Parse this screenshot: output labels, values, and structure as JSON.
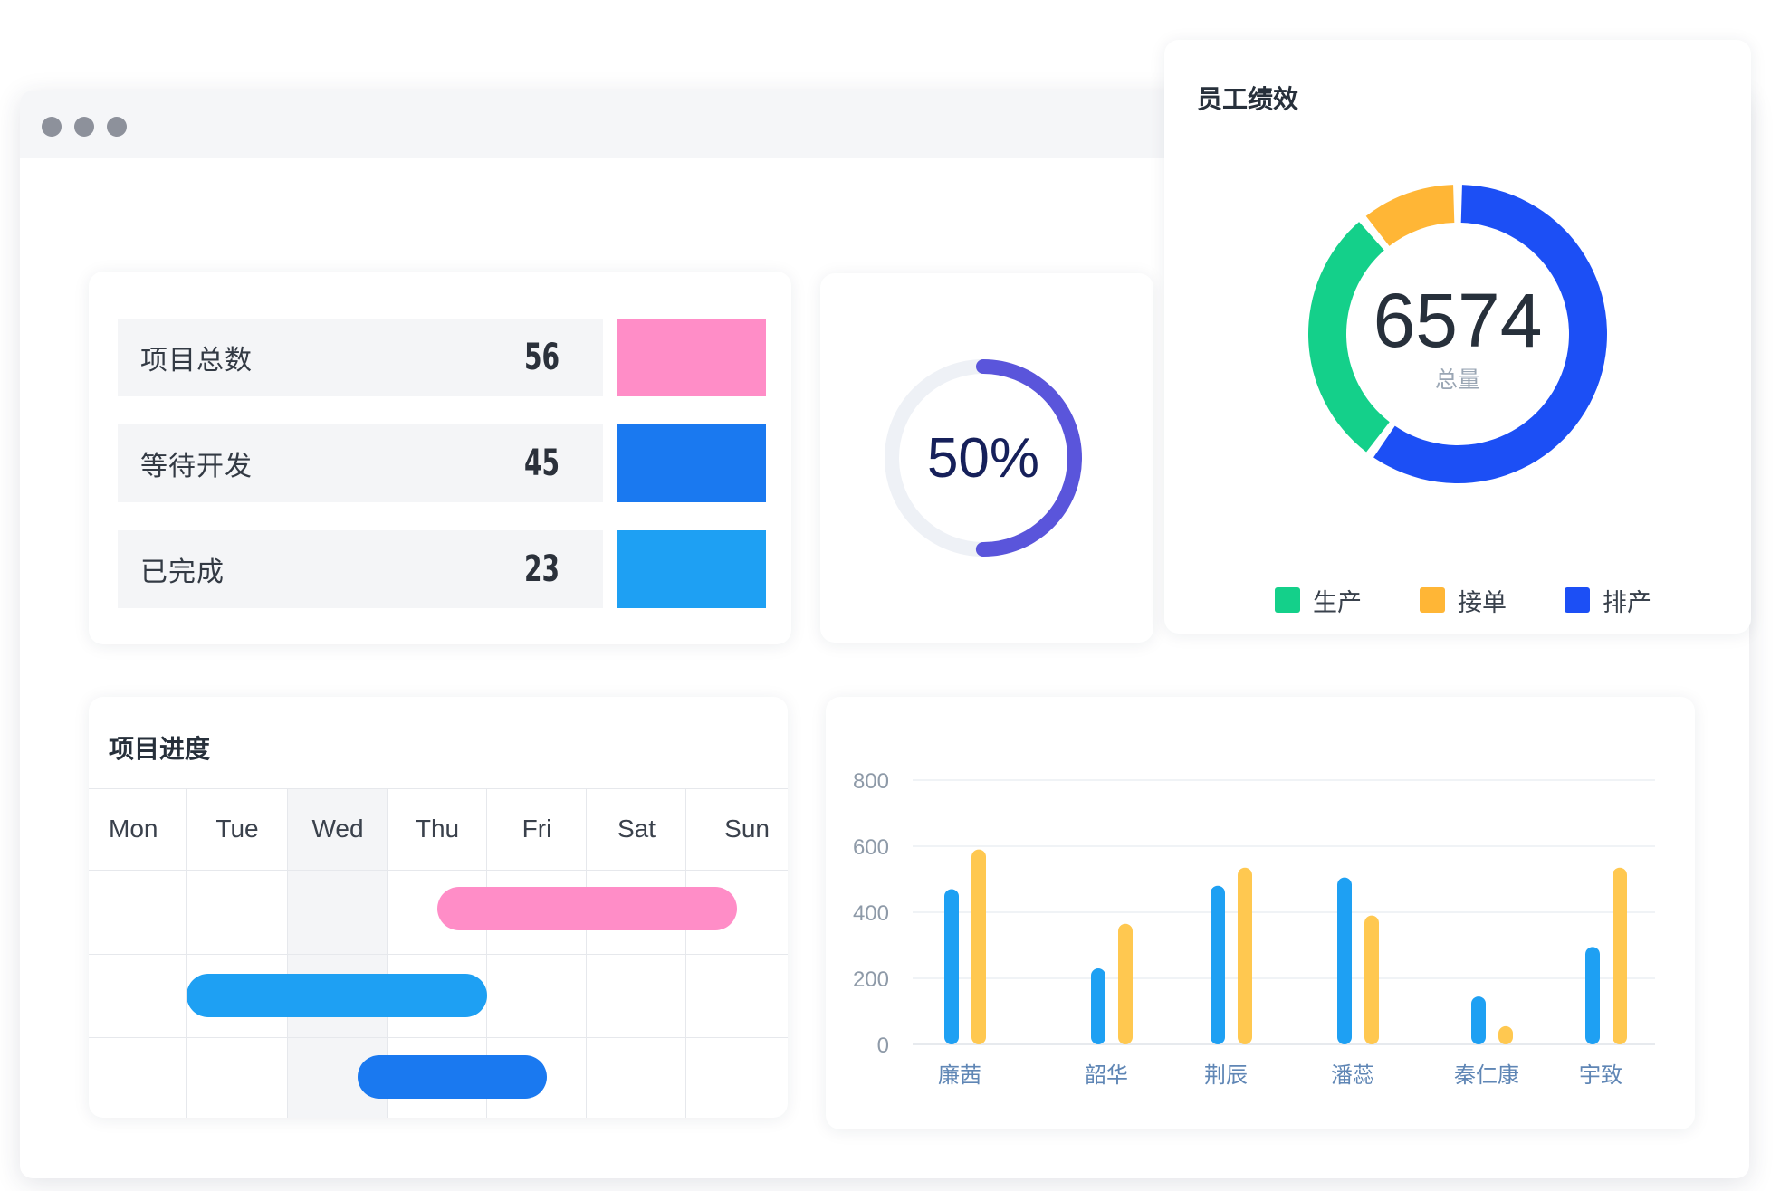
{
  "stats": [
    {
      "label": "项目总数",
      "value": "56",
      "color": "#ff8dc7"
    },
    {
      "label": "等待开发",
      "value": "45",
      "color": "#1a79f0"
    },
    {
      "label": "已完成",
      "value": "23",
      "color": "#1ea0f3"
    }
  ],
  "gauge": {
    "label": "50%",
    "percent": 50,
    "color": "#5a55db",
    "track_color": "#eef1f6"
  },
  "employee": {
    "title": "员工绩效",
    "total": "6574",
    "total_label": "总量",
    "segments": [
      {
        "name": "生产",
        "color": "#14d08a",
        "share": 0.29
      },
      {
        "name": "接单",
        "color": "#ffb636",
        "share": 0.11
      },
      {
        "name": "排产",
        "color": "#1c4ff5",
        "share": 0.6
      }
    ]
  },
  "gantt": {
    "title": "项目进度",
    "days": [
      "Mon",
      "Tue",
      "Wed",
      "Thu",
      "Fri",
      "Sat",
      "Sun"
    ],
    "highlight_day": "Wed",
    "tasks": [
      {
        "start_day": 3.5,
        "end_day": 6.5,
        "color": "#ff8dc7"
      },
      {
        "start_day": 1.0,
        "end_day": 4.0,
        "color": "#1ea0f3"
      },
      {
        "start_day": 2.7,
        "end_day": 4.6,
        "color": "#1a79f0"
      }
    ]
  },
  "chart_data": {
    "type": "bar",
    "categories": [
      "廉茜",
      "韶华",
      "荆辰",
      "潘蕊",
      "秦仁康",
      "宇致"
    ],
    "series": [
      {
        "values": [
          470,
          230,
          480,
          505,
          145,
          295
        ],
        "color": "#1ea0f3"
      },
      {
        "values": [
          590,
          365,
          535,
          390,
          55,
          535
        ],
        "color": "#ffc850"
      }
    ],
    "y_ticks": [
      "0",
      "200",
      "400",
      "600",
      "800"
    ],
    "ylim": [
      0,
      800
    ],
    "grid": true
  }
}
